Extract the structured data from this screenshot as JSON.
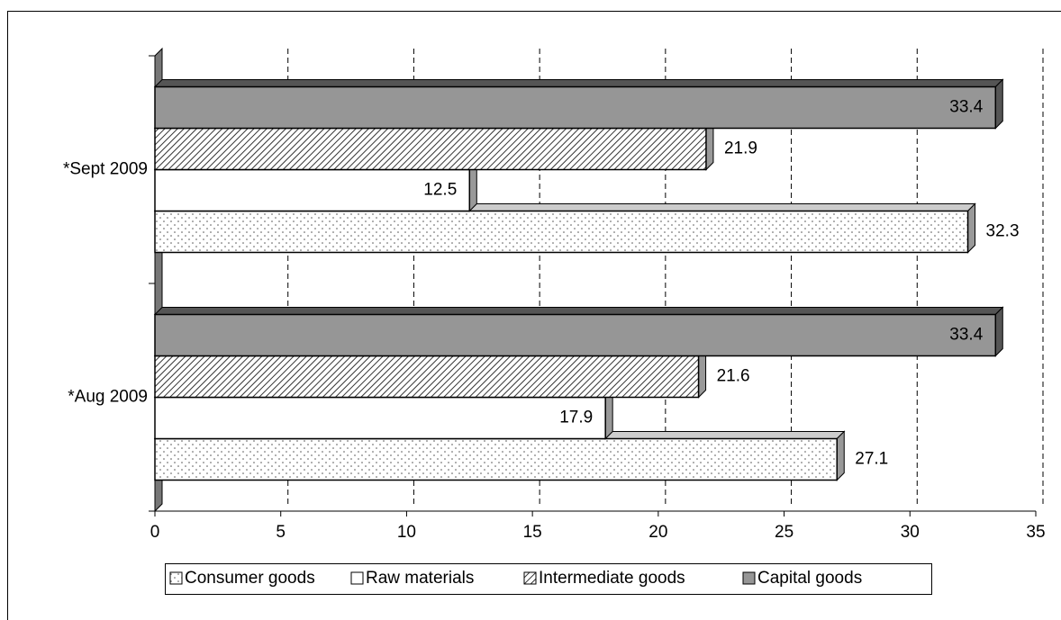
{
  "chart_data": {
    "type": "bar",
    "orientation": "horizontal",
    "categories": [
      "*Sept 2009",
      "*Aug 2009"
    ],
    "series": [
      {
        "name": "Consumer goods",
        "color": "#ffffff",
        "pattern": "dots",
        "label_position": "outside",
        "values": [
          32.3,
          27.1
        ]
      },
      {
        "name": "Raw materials",
        "color": "#ffffff",
        "pattern": "none",
        "label_position": "inside",
        "values": [
          12.5,
          17.9
        ]
      },
      {
        "name": "Intermediate goods",
        "color": "#ffffff",
        "pattern": "hatch",
        "label_position": "outside",
        "values": [
          21.9,
          21.6
        ]
      },
      {
        "name": "Capital goods",
        "color": "#969696",
        "pattern": "none",
        "label_position": "inside",
        "values": [
          33.4,
          33.4
        ]
      }
    ],
    "xlim": [
      0,
      35
    ],
    "xticks": [
      0,
      5,
      10,
      15,
      20,
      25,
      30,
      35
    ],
    "grid": true,
    "legend": "bottom"
  }
}
